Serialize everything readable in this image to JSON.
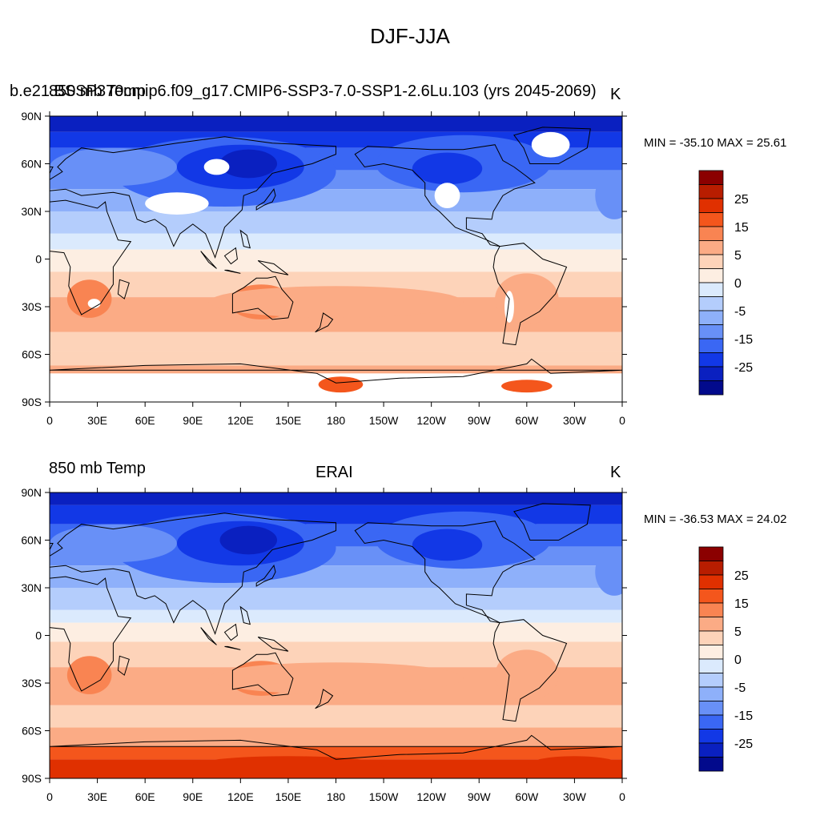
{
  "figure": {
    "title": "DJF-JJA"
  },
  "panels": [
    {
      "left_title": "850 mb Temp",
      "center_title": "b.e21.BSSP370cmip6.f09_g17.CMIP6-SSP3-7.0-SSP1-2.6Lu.103 (yrs 2045-2069)",
      "right_title": "K",
      "stats": "MIN = -35.10 MAX =  25.61"
    },
    {
      "left_title": "850 mb Temp",
      "center_title": "ERAI",
      "right_title": "K",
      "stats": "MIN = -36.53 MAX =  24.02"
    }
  ],
  "axes": {
    "lon_labels": [
      "0",
      "30E",
      "60E",
      "90E",
      "120E",
      "150E",
      "180",
      "150W",
      "120W",
      "90W",
      "60W",
      "30W",
      "0"
    ],
    "lat_labels": [
      "90N",
      "60N",
      "30N",
      "0",
      "30S",
      "60S",
      "90S"
    ]
  },
  "colorbar": {
    "labels": [
      "25",
      "15",
      "5",
      "0",
      "-5",
      "-15",
      "-25"
    ],
    "colors": [
      "#8b0000",
      "#b81d00",
      "#e03000",
      "#f4561c",
      "#f98452",
      "#fbab85",
      "#fdd3b9",
      "#fdeee2",
      "#dbeafd",
      "#b4cdfc",
      "#8eb0fa",
      "#6890f7",
      "#3a67f4",
      "#1238e6",
      "#0a20c0",
      "#020a8c"
    ]
  },
  "chart_data": {
    "type": "heatmap",
    "title": "DJF-JJA",
    "variable": "850 mb Temp",
    "units": "K",
    "x_range": [
      0,
      360
    ],
    "y_range": [
      -90,
      90
    ],
    "contour_levels": [
      -30,
      -25,
      -20,
      -15,
      -10,
      -5,
      -2,
      0,
      2,
      5,
      10,
      15,
      20,
      25,
      30
    ],
    "panels": [
      {
        "name": "b.e21.BSSP370cmip6.f09_g17.CMIP6-SSP3-7.0-SSP1-2.6Lu.103 (yrs 2045-2069)",
        "min": -35.1,
        "max": 25.61,
        "missing_data": "white areas (high topography / Antarctica interior)"
      },
      {
        "name": "ERAI",
        "min": -36.53,
        "max": 24.02
      }
    ]
  }
}
